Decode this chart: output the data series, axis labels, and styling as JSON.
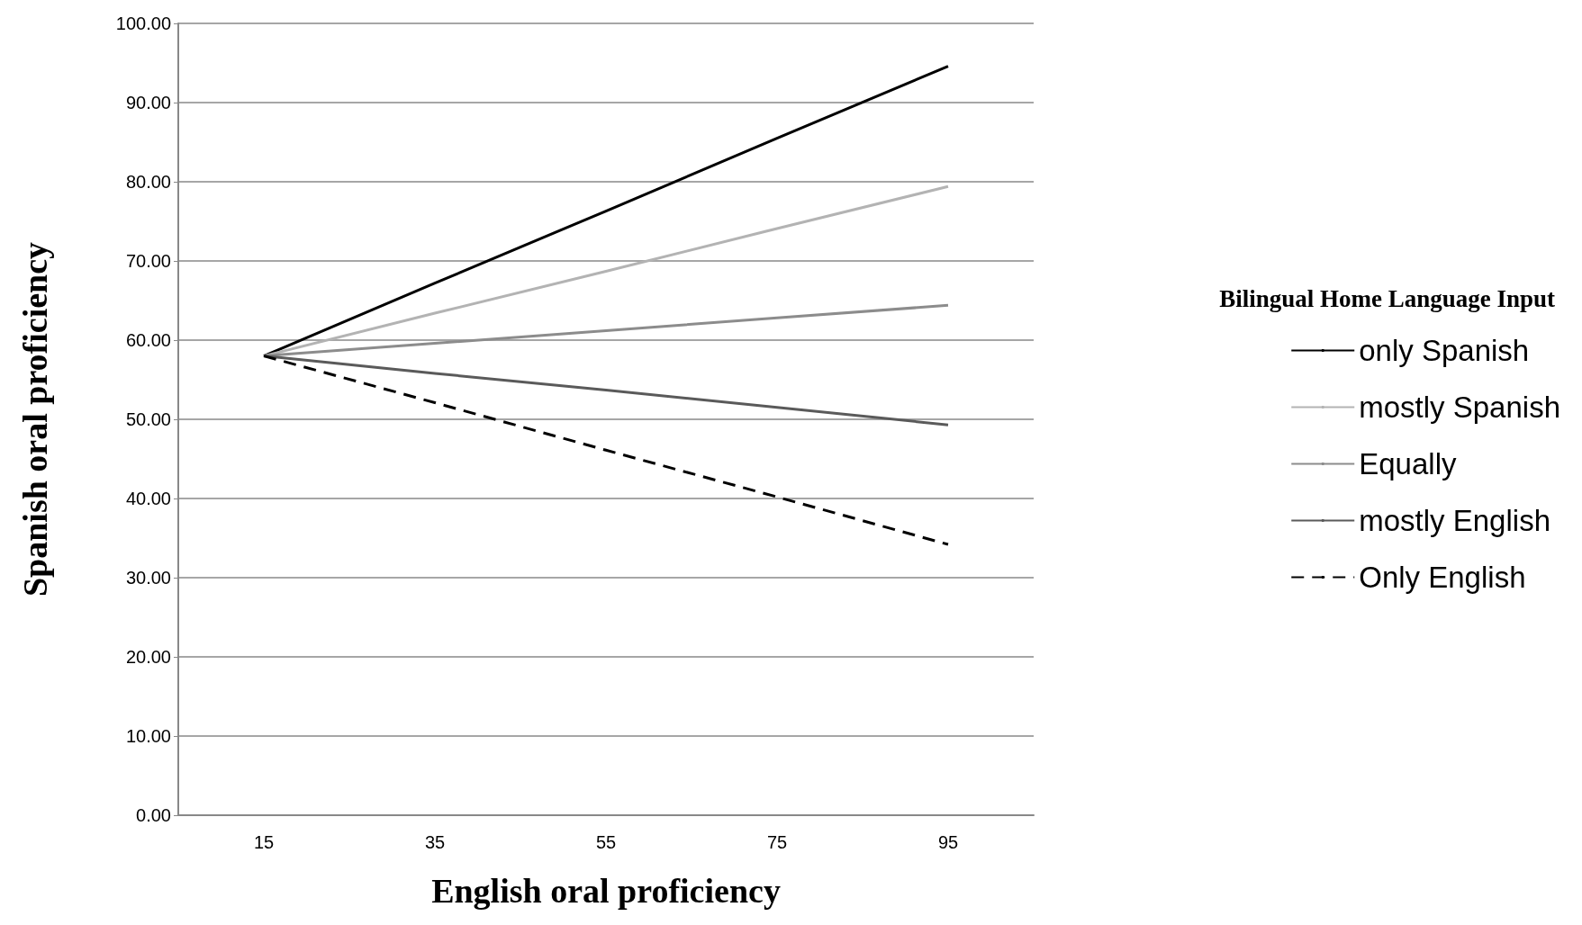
{
  "chart_data": {
    "type": "line",
    "xlabel": "English oral proficiency",
    "ylabel": "Spanish oral proficiency",
    "legend_title": "Bilingual Home Language Input",
    "categories": [
      "15",
      "35",
      "55",
      "75",
      "95"
    ],
    "series": [
      {
        "name": "only Spanish",
        "color": "#000000",
        "values": [
          58,
          67.2,
          76.3,
          85.5,
          94.6
        ]
      },
      {
        "name": "mostly Spanish",
        "color": "#b3b3b3",
        "values": [
          58,
          63.4,
          68.7,
          74.1,
          79.4
        ]
      },
      {
        "name": "Equally",
        "color": "#8c8c8c",
        "values": [
          58,
          59.6,
          61.2,
          62.8,
          64.4
        ]
      },
      {
        "name": "mostly English",
        "color": "#5a5a5a",
        "values": [
          58,
          55.8,
          53.7,
          51.5,
          49.3
        ]
      },
      {
        "name": "Only English",
        "color": "#000000",
        "values": [
          58,
          52.1,
          46.1,
          40.2,
          34.2
        ],
        "line_style": "dashed"
      }
    ],
    "ylim": [
      0,
      100
    ],
    "yticks": [
      {
        "value": 0,
        "label": "0.00"
      },
      {
        "value": 10,
        "label": "10.00"
      },
      {
        "value": 20,
        "label": "20.00"
      },
      {
        "value": 30,
        "label": "30.00"
      },
      {
        "value": 40,
        "label": "40.00"
      },
      {
        "value": 50,
        "label": "50.00"
      },
      {
        "value": 60,
        "label": "60.00"
      },
      {
        "value": 70,
        "label": "70.00"
      },
      {
        "value": 80,
        "label": "80.00"
      },
      {
        "value": 90,
        "label": "90.00"
      },
      {
        "value": 100,
        "label": "100.00"
      }
    ],
    "grid": "y",
    "legend": "right",
    "marker": "none",
    "line_style": "solid"
  }
}
